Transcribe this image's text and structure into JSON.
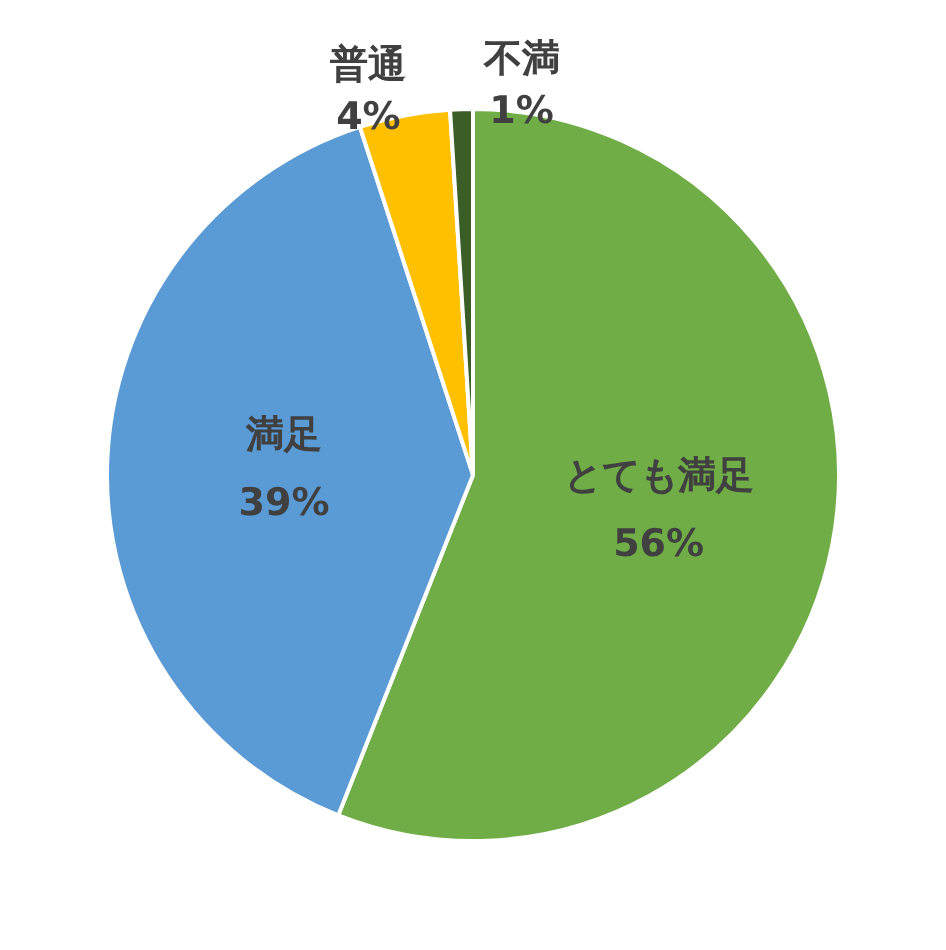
{
  "chart_data": {
    "type": "pie",
    "categories": [
      "とても満足",
      "満足",
      "普通",
      "不満"
    ],
    "values": [
      56,
      39,
      4,
      1
    ],
    "colors": [
      "#70ad47",
      "#5b9bd5",
      "#ffc000",
      "#3b5d27"
    ],
    "value_labels": [
      "56%",
      "39%",
      "4%",
      "1%"
    ],
    "legend": false
  }
}
